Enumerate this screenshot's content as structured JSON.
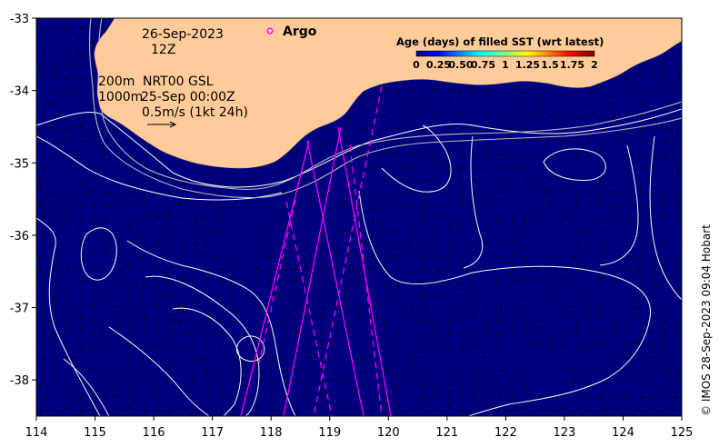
{
  "map": {
    "lon_range": [
      114,
      125
    ],
    "lat_range": [
      -38.5,
      -33
    ],
    "x_ticks": [
      "114",
      "115",
      "116",
      "117",
      "118",
      "119",
      "120",
      "121",
      "122",
      "123",
      "124",
      "125"
    ],
    "y_ticks": [
      "-33",
      "-34",
      "-35",
      "-36",
      "-37",
      "-38"
    ],
    "colors": {
      "ocean": "#00007e",
      "land": "#ffcc99",
      "contour": "#ffffff",
      "track": "#ff00ff",
      "arrow": "#000000"
    }
  },
  "annotations": {
    "date": "26-Sep-2023",
    "hour": "12Z",
    "depth1": "200m",
    "depth2": "1000m",
    "product": "NRT00 GSL",
    "product_time": "25-Sep 00:00Z",
    "scale_label": "0.5m/s (1kt 24h)"
  },
  "legend": {
    "argo_label": "Argo",
    "argo_color": "#ff00ff"
  },
  "colorbar": {
    "title": "Age (days) of filled SST (wrt latest)",
    "labels": [
      "0",
      "0.25",
      "0.50",
      "0.75",
      "1",
      "1.25",
      "1.5",
      "1.75",
      "2"
    ],
    "range": [
      0,
      2
    ]
  },
  "credit": "© IMOS 28-Sep-2023 09:04 Hobart"
}
